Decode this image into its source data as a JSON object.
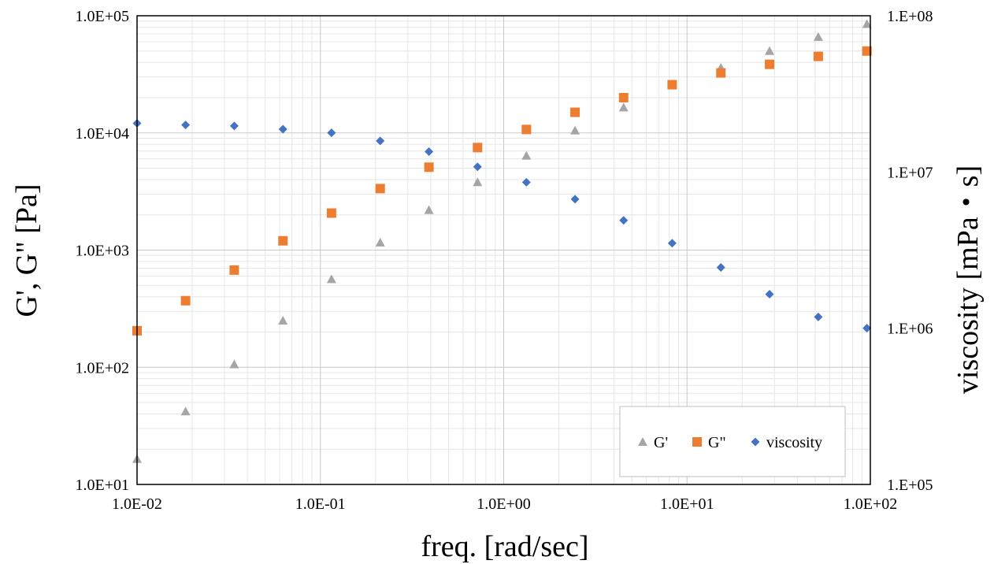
{
  "chart_data": {
    "type": "scatter",
    "xlabel": "freq. [rad/sec]",
    "ylabel": "G', G\" [Pa]",
    "y2label": "viscosity  [mPa・s]",
    "x_scale": "log",
    "y_scale": "log",
    "y2_scale": "log",
    "xlim": [
      0.01,
      100
    ],
    "ylim": [
      10,
      100000
    ],
    "y2lim": [
      100000,
      100000000
    ],
    "x_ticks": [
      "1.0E-02",
      "1.0E-01",
      "1.0E+00",
      "1.0E+01",
      "1.0E+02"
    ],
    "y_ticks": [
      "1.0E+01",
      "1.0E+02",
      "1.0E+03",
      "1.0E+04",
      "1.0E+05"
    ],
    "y2_ticks": [
      "1.E+05",
      "1.E+06",
      "1.E+07",
      "1.E+08"
    ],
    "grid": true,
    "legend_position": "bottom-right",
    "x": [
      0.01,
      0.0184,
      0.0339,
      0.0625,
      0.115,
      0.212,
      0.391,
      0.72,
      1.33,
      2.45,
      4.51,
      8.3,
      15.3,
      28.2,
      52,
      95.8
    ],
    "series": [
      {
        "name": "G'",
        "axis": "left",
        "marker": "triangle",
        "color": "#a5a5a5",
        "values": [
          16.5,
          42,
          106,
          250,
          565,
          1160,
          2200,
          3800,
          6400,
          10500,
          16500,
          26000,
          36000,
          50000,
          66000,
          85000
        ]
      },
      {
        "name": "G\"",
        "axis": "left",
        "marker": "square",
        "color": "#ed7d31",
        "values": [
          205,
          370,
          675,
          1200,
          2070,
          3350,
          5100,
          7500,
          10700,
          15000,
          20000,
          25800,
          32500,
          38500,
          45000,
          50000
        ]
      },
      {
        "name": "viscosity",
        "axis": "right",
        "marker": "diamond",
        "color": "#4472c4",
        "values": [
          20500000,
          20000000,
          19700000,
          18800000,
          17800000,
          15800000,
          13500000,
          10800000,
          8600000,
          6700000,
          4900000,
          3500000,
          2450000,
          1650000,
          1180000,
          1000000
        ]
      }
    ]
  }
}
